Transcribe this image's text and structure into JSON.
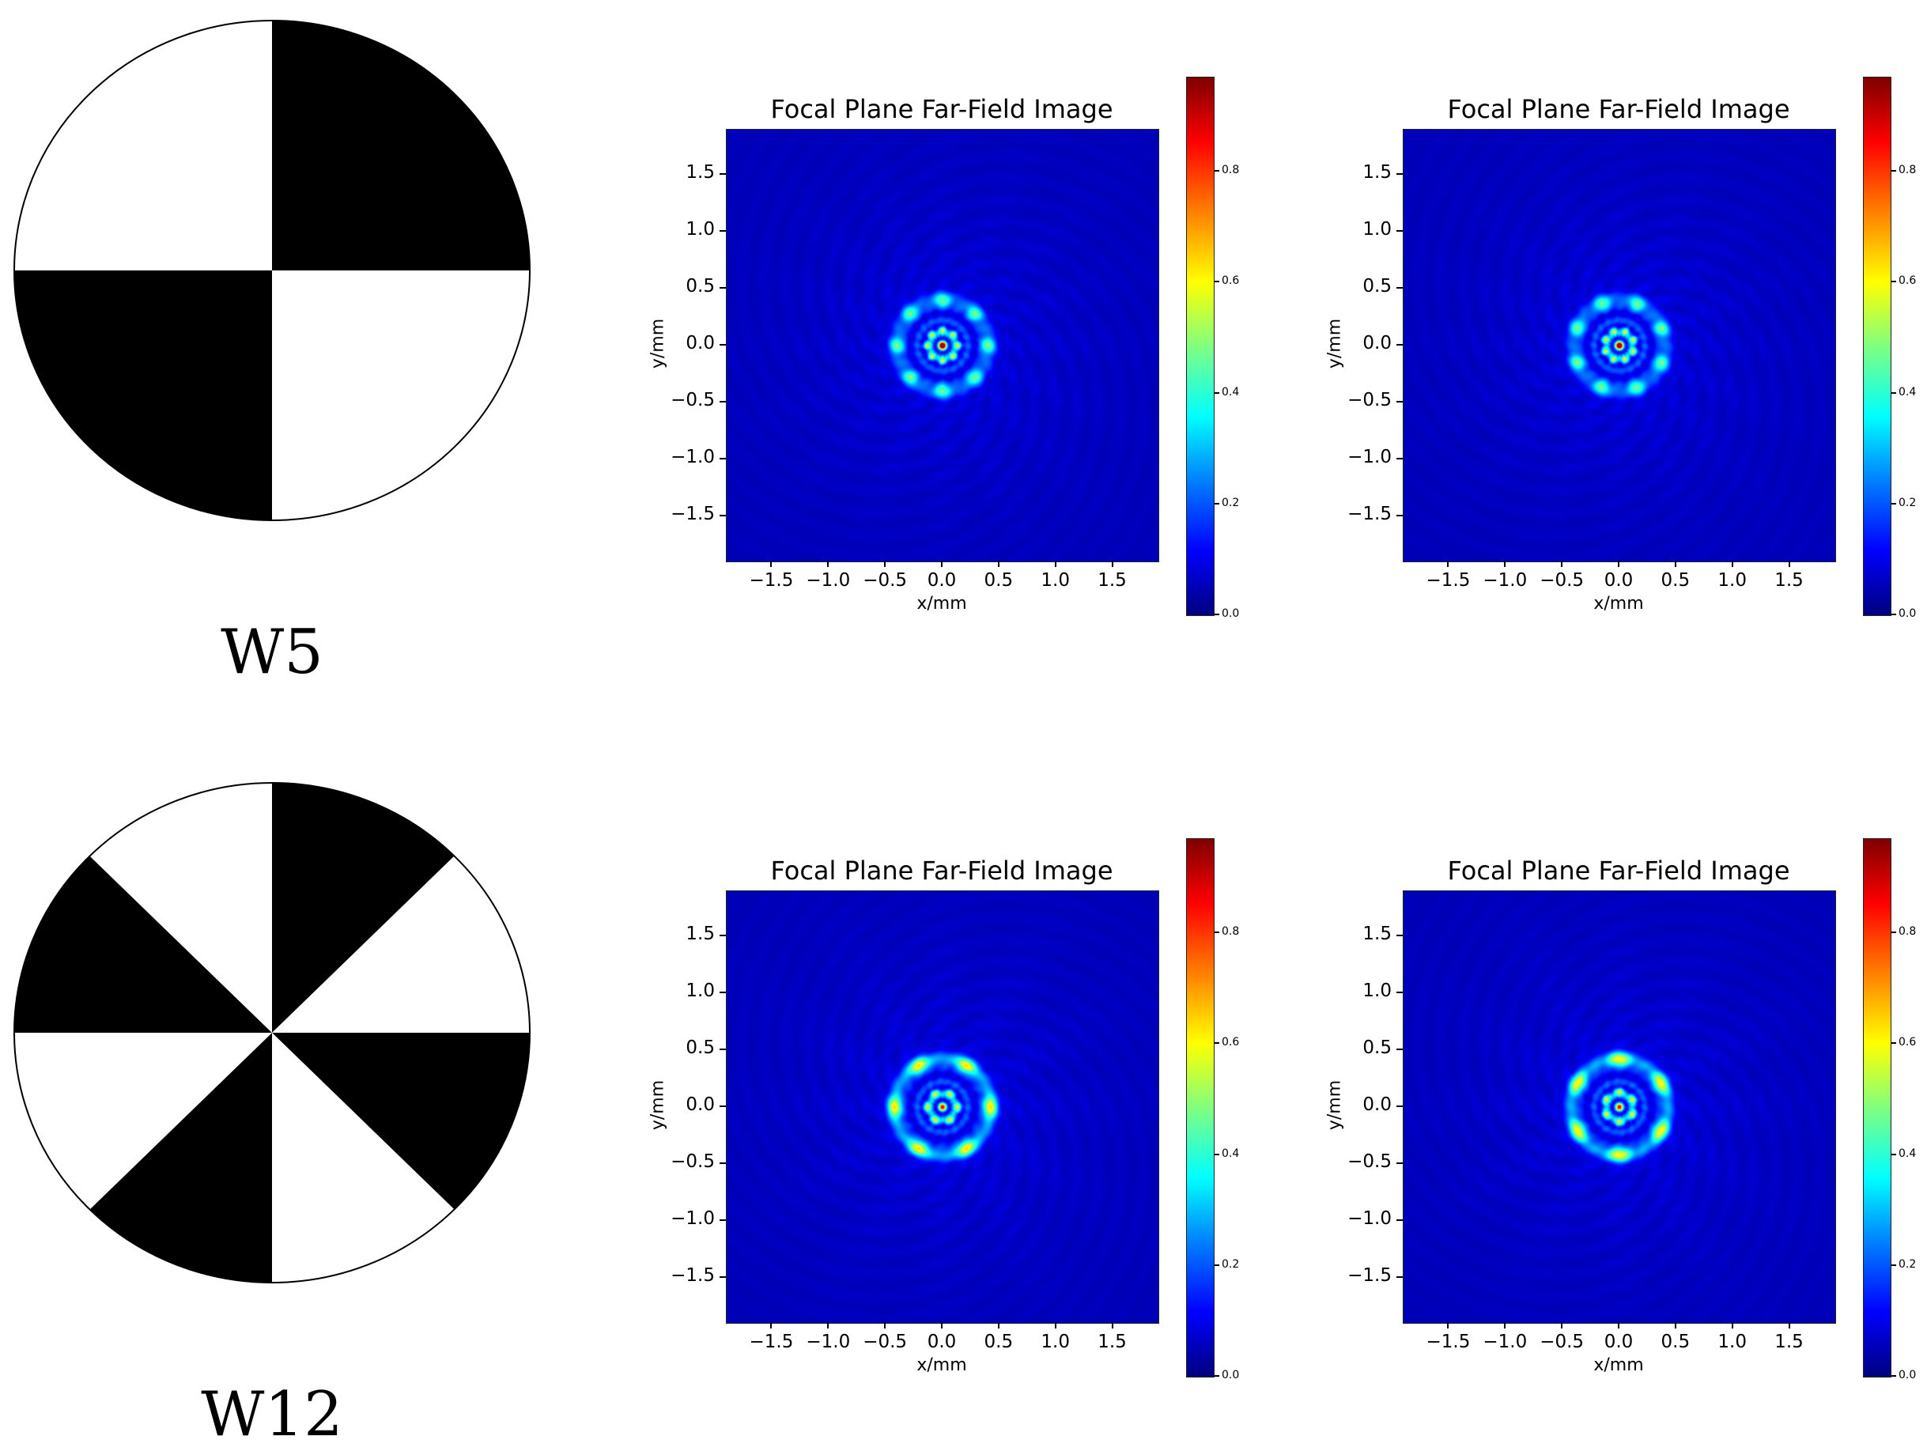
{
  "colors": {
    "background": "#ffffff",
    "mask_black": "#000000",
    "mask_white": "#ffffff",
    "jet": [
      "#000080",
      "#0000ff",
      "#0080ff",
      "#00ffff",
      "#80ff80",
      "#ffff00",
      "#ff8000",
      "#ff0000",
      "#800000"
    ]
  },
  "masks": [
    {
      "label": "W5",
      "sectors": 4
    },
    {
      "label": "W12",
      "sectors": 8
    }
  ],
  "chart_data": [
    {
      "type": "heatmap",
      "row": 0,
      "col": 0,
      "title": "Focal Plane Far-Field Image",
      "xlabel": "x/mm",
      "ylabel": "y/mm",
      "xlim": [
        -1.9,
        1.9
      ],
      "ylim": [
        -1.9,
        1.9
      ],
      "xticks": [
        "−1.5",
        "−1.0",
        "−0.5",
        "0.0",
        "0.5",
        "1.0",
        "1.5"
      ],
      "yticks": [
        "1.5",
        "1.0",
        "0.5",
        "0.0",
        "−0.5",
        "−1.0",
        "−1.5"
      ],
      "colorbar": {
        "range": [
          0.0,
          0.97
        ],
        "ticks": [
          "0.8",
          "0.6",
          "0.4",
          "0.2",
          "0.0"
        ]
      },
      "pattern": {
        "lobes": 8,
        "ring_radius_mm": 0.4,
        "peak_center": 0.9,
        "lobe_peak": 0.4,
        "rotation_deg": 0
      }
    },
    {
      "type": "heatmap",
      "row": 0,
      "col": 1,
      "title": "Focal Plane Far-Field Image",
      "xlabel": "x/mm",
      "ylabel": "y/mm",
      "xlim": [
        -1.9,
        1.9
      ],
      "ylim": [
        -1.9,
        1.9
      ],
      "xticks": [
        "−1.5",
        "−1.0",
        "−0.5",
        "0.0",
        "0.5",
        "1.0",
        "1.5"
      ],
      "yticks": [
        "1.5",
        "1.0",
        "0.5",
        "0.0",
        "−0.5",
        "−1.0",
        "−1.5"
      ],
      "colorbar": {
        "range": [
          0.0,
          0.97
        ],
        "ticks": [
          "0.8",
          "0.6",
          "0.4",
          "0.2",
          "0.0"
        ]
      },
      "pattern": {
        "lobes": 8,
        "ring_radius_mm": 0.4,
        "peak_center": 0.85,
        "lobe_peak": 0.4,
        "rotation_deg": 22
      }
    },
    {
      "type": "heatmap",
      "row": 1,
      "col": 0,
      "title": "Focal Plane Far-Field Image",
      "xlabel": "x/mm",
      "ylabel": "y/mm",
      "xlim": [
        -1.9,
        1.9
      ],
      "ylim": [
        -1.9,
        1.9
      ],
      "xticks": [
        "−1.5",
        "−1.0",
        "−0.5",
        "0.0",
        "0.5",
        "1.0",
        "1.5"
      ],
      "yticks": [
        "1.5",
        "1.0",
        "0.5",
        "0.0",
        "−0.5",
        "−1.0",
        "−1.5"
      ],
      "colorbar": {
        "range": [
          0.0,
          0.97
        ],
        "ticks": [
          "0.8",
          "0.6",
          "0.4",
          "0.2",
          "0.0"
        ]
      },
      "pattern": {
        "lobes": 6,
        "ring_radius_mm": 0.42,
        "peak_center": 0.55,
        "lobe_peak": 0.55,
        "rotation_deg": 60
      }
    },
    {
      "type": "heatmap",
      "row": 1,
      "col": 1,
      "title": "Focal Plane Far-Field Image",
      "xlabel": "x/mm",
      "ylabel": "y/mm",
      "xlim": [
        -1.9,
        1.9
      ],
      "ylim": [
        -1.9,
        1.9
      ],
      "xticks": [
        "−1.5",
        "−1.0",
        "−0.5",
        "0.0",
        "0.5",
        "1.0",
        "1.5"
      ],
      "yticks": [
        "1.5",
        "1.0",
        "0.5",
        "0.0",
        "−0.5",
        "−1.0",
        "−1.5"
      ],
      "colorbar": {
        "range": [
          0.0,
          0.97
        ],
        "ticks": [
          "0.8",
          "0.6",
          "0.4",
          "0.2",
          "0.0"
        ]
      },
      "pattern": {
        "lobes": 6,
        "ring_radius_mm": 0.42,
        "peak_center": 0.55,
        "lobe_peak": 0.55,
        "rotation_deg": 30
      }
    }
  ]
}
